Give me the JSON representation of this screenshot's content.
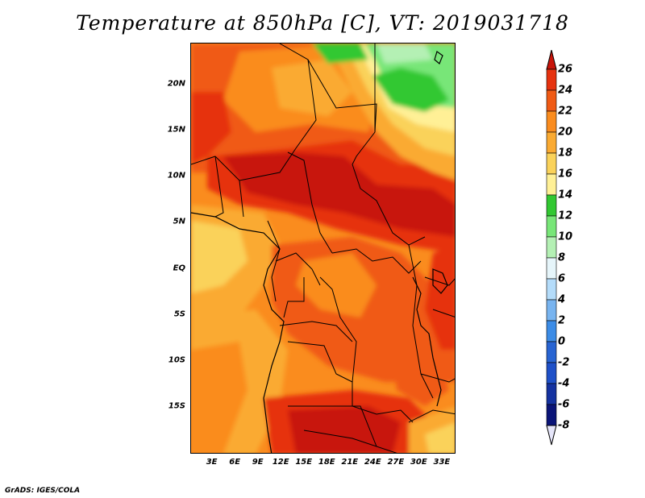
{
  "title": "Temperature at 850hPa [C], VT: 2019031718",
  "footer": "GrADS: IGES/COLA",
  "map": {
    "lat_range": [
      -20,
      24
    ],
    "lon_range": [
      0,
      35
    ],
    "lat_ticks": [
      {
        "value": 20,
        "label": "20N"
      },
      {
        "value": 15,
        "label": "15N"
      },
      {
        "value": 10,
        "label": "10N"
      },
      {
        "value": 5,
        "label": "5N"
      },
      {
        "value": 0,
        "label": "EQ"
      },
      {
        "value": -5,
        "label": "5S"
      },
      {
        "value": -10,
        "label": "10S"
      },
      {
        "value": -15,
        "label": "15S"
      }
    ],
    "lon_ticks": [
      {
        "value": 3,
        "label": "3E"
      },
      {
        "value": 6,
        "label": "6E"
      },
      {
        "value": 9,
        "label": "9E"
      },
      {
        "value": 12,
        "label": "12E"
      },
      {
        "value": 15,
        "label": "15E"
      },
      {
        "value": 18,
        "label": "18E"
      },
      {
        "value": 21,
        "label": "21E"
      },
      {
        "value": 24,
        "label": "24E"
      },
      {
        "value": 27,
        "label": "27E"
      },
      {
        "value": 30,
        "label": "30E"
      },
      {
        "value": 33,
        "label": "33E"
      }
    ]
  },
  "colorbar": {
    "levels": [
      {
        "label": "26",
        "color": "#c8140a"
      },
      {
        "label": "24",
        "color": "#e6320f"
      },
      {
        "label": "22",
        "color": "#f05a14"
      },
      {
        "label": "20",
        "color": "#fa8c1e"
      },
      {
        "label": "18",
        "color": "#faaa32"
      },
      {
        "label": "16",
        "color": "#fad25a"
      },
      {
        "label": "14",
        "color": "#fff096"
      },
      {
        "label": "12",
        "color": "#32c832"
      },
      {
        "label": "10",
        "color": "#78e678"
      },
      {
        "label": "8",
        "color": "#b4f0b4"
      },
      {
        "label": "6",
        "color": "#e6f5fa"
      },
      {
        "label": "4",
        "color": "#b4dcfa"
      },
      {
        "label": "2",
        "color": "#78b4f0"
      },
      {
        "label": "0",
        "color": "#3c8ce6"
      },
      {
        "label": "-2",
        "color": "#2864d2"
      },
      {
        "label": "-4",
        "color": "#1e50c8"
      },
      {
        "label": "-6",
        "color": "#1432a0"
      },
      {
        "label": "-8",
        "color": "#0a1478"
      }
    ],
    "top_arrow_color": "#c8140a",
    "bottom_arrow_color": "#e6e6fa"
  }
}
